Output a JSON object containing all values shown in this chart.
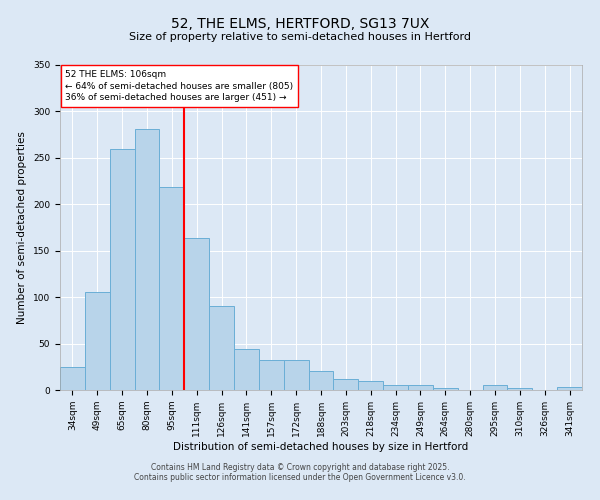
{
  "title": "52, THE ELMS, HERTFORD, SG13 7UX",
  "subtitle": "Size of property relative to semi-detached houses in Hertford",
  "xlabel": "Distribution of semi-detached houses by size in Hertford",
  "ylabel": "Number of semi-detached properties",
  "categories": [
    "34sqm",
    "49sqm",
    "65sqm",
    "80sqm",
    "95sqm",
    "111sqm",
    "126sqm",
    "141sqm",
    "157sqm",
    "172sqm",
    "188sqm",
    "203sqm",
    "218sqm",
    "234sqm",
    "249sqm",
    "264sqm",
    "280sqm",
    "295sqm",
    "310sqm",
    "326sqm",
    "341sqm"
  ],
  "values": [
    25,
    106,
    260,
    281,
    219,
    164,
    90,
    44,
    32,
    32,
    20,
    12,
    10,
    5,
    5,
    2,
    0,
    5,
    2,
    0,
    3
  ],
  "bar_color": "#b8d4ea",
  "bar_edge_color": "#6aaed6",
  "ylim": [
    0,
    350
  ],
  "yticks": [
    0,
    50,
    100,
    150,
    200,
    250,
    300,
    350
  ],
  "vline_color": "red",
  "vline_index": 5,
  "annotation_title": "52 THE ELMS: 106sqm",
  "annotation_line1": "← 64% of semi-detached houses are smaller (805)",
  "annotation_line2": "36% of semi-detached houses are larger (451) →",
  "annotation_box_color": "white",
  "annotation_box_edge_color": "red",
  "footer1": "Contains HM Land Registry data © Crown copyright and database right 2025.",
  "footer2": "Contains public sector information licensed under the Open Government Licence v3.0.",
  "background_color": "#dce8f5",
  "plot_background_color": "#dce8f5",
  "title_fontsize": 10,
  "subtitle_fontsize": 8,
  "axis_label_fontsize": 7.5,
  "tick_fontsize": 6.5,
  "annotation_fontsize": 6.5,
  "footer_fontsize": 5.5
}
